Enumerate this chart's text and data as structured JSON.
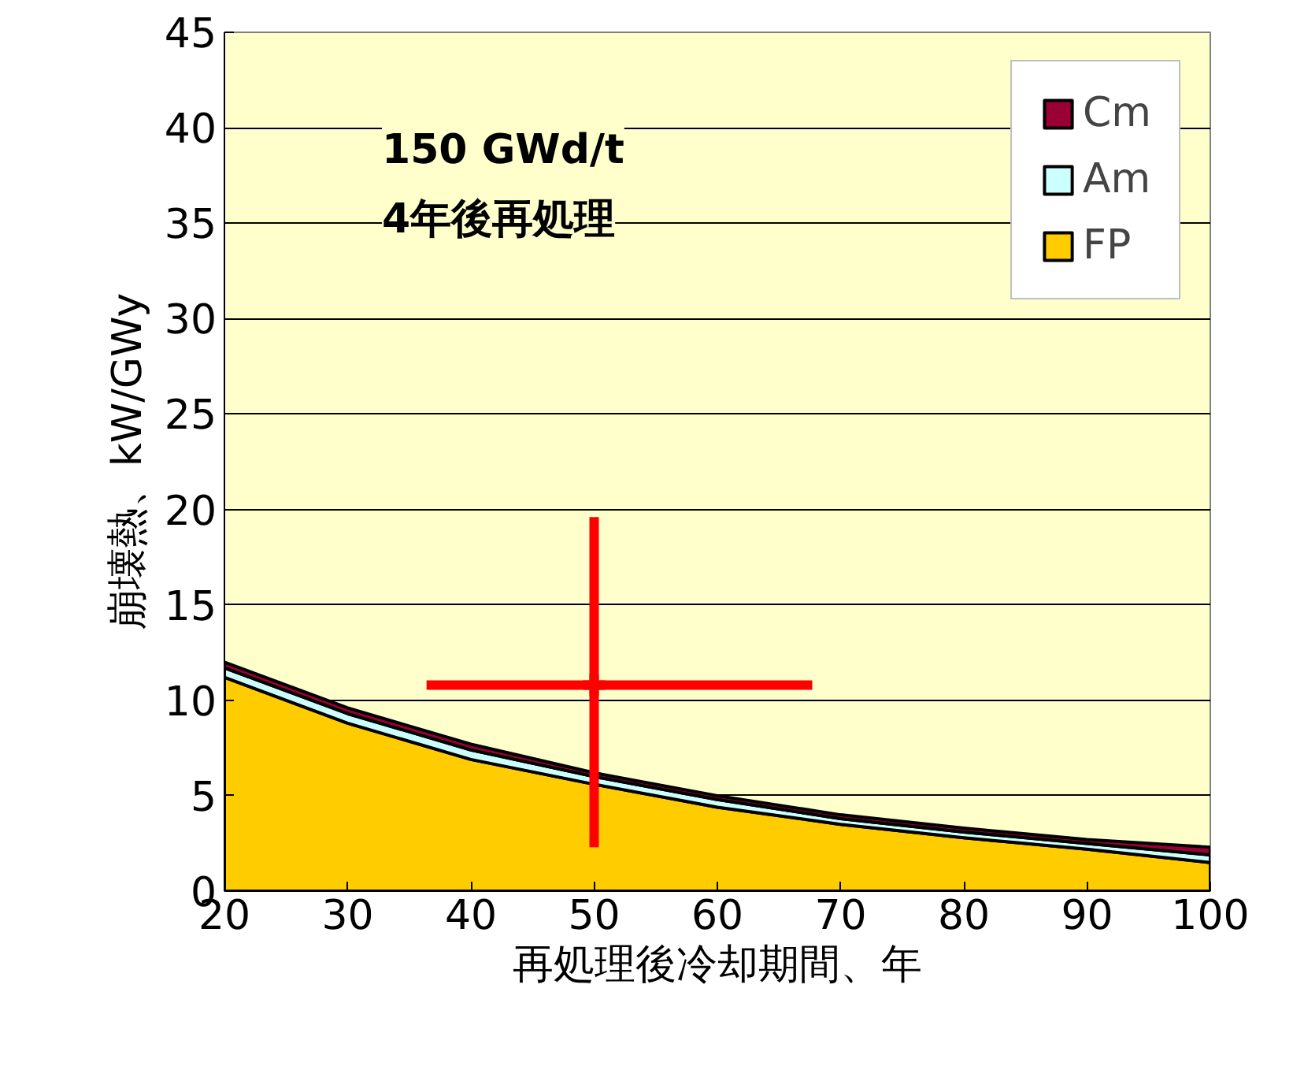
{
  "chart_data": {
    "type": "area",
    "stacked": true,
    "xlabel": "再処理後冷却期間、年",
    "ylabel": "崩壊熱、kW/GWy",
    "x": [
      20,
      30,
      40,
      50,
      60,
      70,
      80,
      90,
      100
    ],
    "series": [
      {
        "name": "FP",
        "color": "#ffcc00",
        "values": [
          11.2,
          8.8,
          6.9,
          5.6,
          4.4,
          3.5,
          2.8,
          2.2,
          1.5
        ]
      },
      {
        "name": "Am",
        "color": "#ccffff",
        "values": [
          0.5,
          0.5,
          0.5,
          0.4,
          0.4,
          0.3,
          0.3,
          0.3,
          0.4
        ]
      },
      {
        "name": "Cm",
        "color": "#990033",
        "values": [
          0.3,
          0.3,
          0.3,
          0.2,
          0.2,
          0.2,
          0.2,
          0.2,
          0.4
        ]
      },
      {
        "type": "scatter",
        "marker": "cross",
        "color": "#ff0000",
        "x": [
          50
        ],
        "values": [
          10.8
        ],
        "errors": [
          [
            2.3,
            19.6
          ]
        ],
        "xerrors": [
          [
            36.4,
            67.7
          ]
        ]
      }
    ],
    "annotations": [
      "150 GWd/t",
      "4年後再処理"
    ],
    "xlim": [
      20,
      100
    ],
    "ylim": [
      0,
      45
    ],
    "xticks": [
      20,
      30,
      40,
      50,
      60,
      70,
      80,
      90,
      100
    ],
    "yticks": [
      0,
      5,
      10,
      15,
      20,
      25,
      30,
      35,
      40,
      45
    ],
    "grid": "y",
    "legend": "top right"
  }
}
